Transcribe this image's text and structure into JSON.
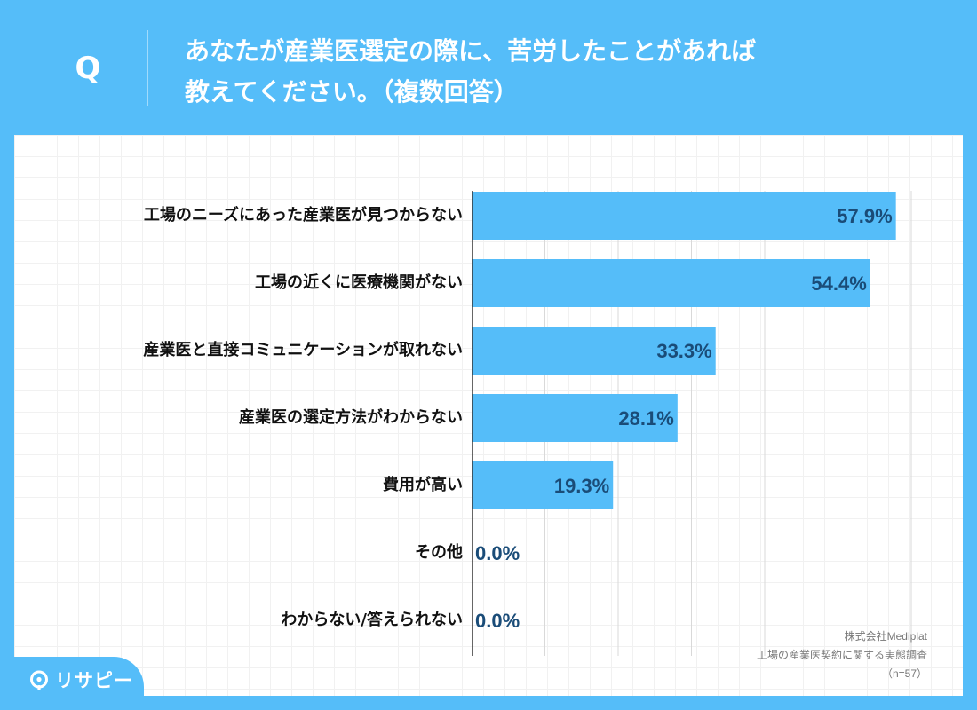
{
  "question": {
    "marker": "Q",
    "text_line1": "あなたが産業医選定の際に、苦労したことがあれば",
    "text_line2": "教えてください。（複数回答）"
  },
  "source": {
    "company": "株式会社Mediplat",
    "survey": "工場の産業医契約に関する実態調査",
    "sample": "（n=57）"
  },
  "logo": {
    "text": "リサピー",
    "icon": "rissapi-logo-icon"
  },
  "colors": {
    "background": "#55bdf9",
    "bar": "#55bdf9",
    "value_text": "#1a4c78",
    "label_text": "#111111"
  },
  "chart_data": {
    "type": "bar",
    "orientation": "horizontal",
    "title": "",
    "xlabel": "",
    "ylabel": "",
    "xlim": [
      0,
      60
    ],
    "grid": true,
    "value_format": "percent",
    "categories": [
      "工場のニーズにあった産業医が見つからない",
      "工場の近くに医療機関がない",
      "産業医と直接コミュニケーションが取れない",
      "産業医の選定方法がわからない",
      "費用が高い",
      "その他",
      "わからない/答えられない"
    ],
    "values": [
      57.9,
      54.4,
      33.3,
      28.1,
      19.3,
      0.0,
      0.0
    ],
    "labels": [
      "57.9%",
      "54.4%",
      "33.3%",
      "28.1%",
      "19.3%",
      "0.0%",
      "0.0%"
    ]
  }
}
